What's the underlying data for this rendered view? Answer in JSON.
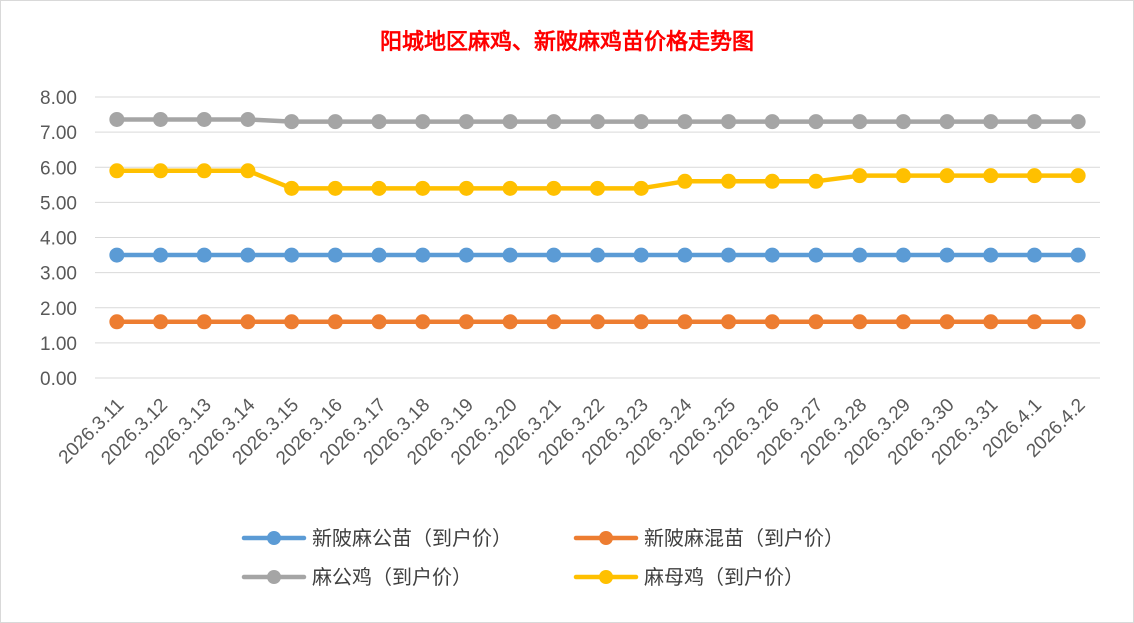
{
  "chart_data": {
    "type": "line",
    "title": "阳城地区麻鸡、新陂麻鸡苗价格走势图",
    "xlabel": "",
    "ylabel": "",
    "ylim": [
      0,
      8
    ],
    "y_ticks": [
      "0.00",
      "1.00",
      "2.00",
      "3.00",
      "4.00",
      "5.00",
      "6.00",
      "7.00",
      "8.00"
    ],
    "grid": "horizontal",
    "legend_position": "bottom",
    "categories": [
      "2026.3.11",
      "2026.3.12",
      "2026.3.13",
      "2026.3.14",
      "2026.3.15",
      "2026.3.16",
      "2026.3.17",
      "2026.3.18",
      "2026.3.19",
      "2026.3.20",
      "2026.3.21",
      "2026.3.22",
      "2026.3.23",
      "2026.3.24",
      "2026.3.25",
      "2026.3.26",
      "2026.3.27",
      "2026.3.28",
      "2026.3.29",
      "2026.3.30",
      "2026.3.31",
      "2026.4.1",
      "2026.4.2"
    ],
    "series": [
      {
        "name": "新陂麻公苗（到户价）",
        "color": "#5b9bd5",
        "values": [
          3.5,
          3.5,
          3.5,
          3.5,
          3.5,
          3.5,
          3.5,
          3.5,
          3.5,
          3.5,
          3.5,
          3.5,
          3.5,
          3.5,
          3.5,
          3.5,
          3.5,
          3.5,
          3.5,
          3.5,
          3.5,
          3.5,
          3.5
        ]
      },
      {
        "name": "新陂麻混苗（到户价）",
        "color": "#ed7d31",
        "values": [
          1.6,
          1.6,
          1.6,
          1.6,
          1.6,
          1.6,
          1.6,
          1.6,
          1.6,
          1.6,
          1.6,
          1.6,
          1.6,
          1.6,
          1.6,
          1.6,
          1.6,
          1.6,
          1.6,
          1.6,
          1.6,
          1.6,
          1.6
        ]
      },
      {
        "name": "麻公鸡（到户价）",
        "color": "#a5a5a5",
        "values": [
          7.36,
          7.36,
          7.36,
          7.36,
          7.3,
          7.3,
          7.3,
          7.3,
          7.3,
          7.3,
          7.3,
          7.3,
          7.3,
          7.3,
          7.3,
          7.3,
          7.3,
          7.3,
          7.3,
          7.3,
          7.3,
          7.3,
          7.3
        ]
      },
      {
        "name": "麻母鸡（到户价）",
        "color": "#ffc000",
        "values": [
          5.9,
          5.9,
          5.9,
          5.9,
          5.4,
          5.4,
          5.4,
          5.4,
          5.4,
          5.4,
          5.4,
          5.4,
          5.4,
          5.6,
          5.6,
          5.6,
          5.6,
          5.76,
          5.76,
          5.76,
          5.76,
          5.76,
          5.76
        ]
      }
    ]
  }
}
